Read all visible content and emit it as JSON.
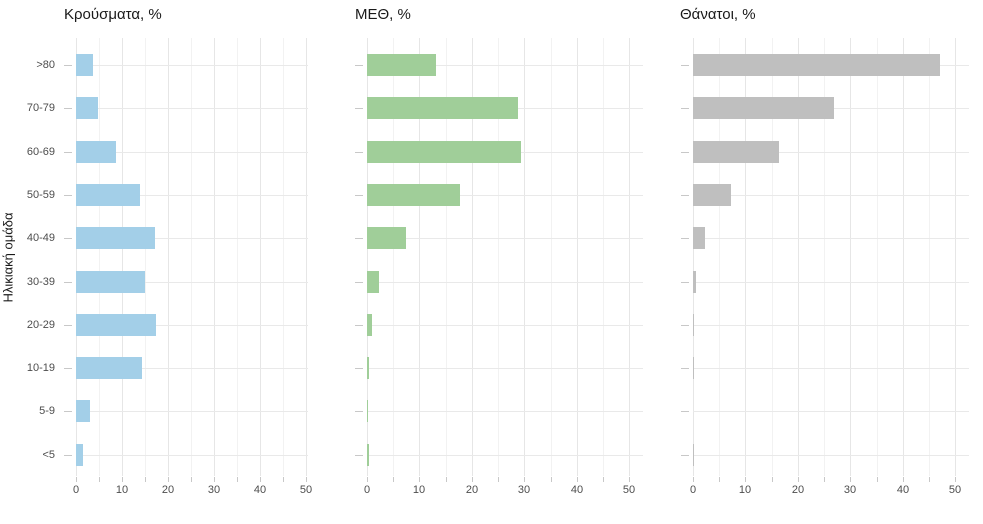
{
  "chart_data": {
    "type": "bar",
    "orientation": "horizontal",
    "categories": [
      ">80",
      "70-79",
      "60-69",
      "50-59",
      "40-49",
      "30-39",
      "20-29",
      "10-19",
      "5-9",
      "<5"
    ],
    "series": [
      {
        "name": "Κρούσματα, %",
        "color": "#a3cfe8",
        "values": [
          3.7,
          4.7,
          8.6,
          14.0,
          17.1,
          15.1,
          17.5,
          14.4,
          3.0,
          1.5
        ]
      },
      {
        "name": "ΜΕΘ, %",
        "color": "#a0ce99",
        "values": [
          13.1,
          28.8,
          29.4,
          17.7,
          7.4,
          2.3,
          1.0,
          0.3,
          0.2,
          0.3
        ]
      },
      {
        "name": "Θάνατοι, %",
        "color": "#bfbfbf",
        "values": [
          47.0,
          26.8,
          16.3,
          7.2,
          2.2,
          0.6,
          0.2,
          0.2,
          0.0,
          0.1
        ]
      }
    ],
    "xlabel": "",
    "ylabel": "Ηλικιακή ομάδα",
    "x_ticks": [
      0,
      10,
      20,
      30,
      40,
      50
    ],
    "xlim": [
      0,
      52.5
    ],
    "grid": true,
    "legend": "none",
    "style": {
      "grid_major_color": "#e6e6e6",
      "grid_minor_color": "#f2f2f2",
      "axis_text_color": "#4d4d4d",
      "title_color": "#1a1a1a",
      "tick_mark_color": "#c8c8c8",
      "background": "#ffffff"
    }
  }
}
